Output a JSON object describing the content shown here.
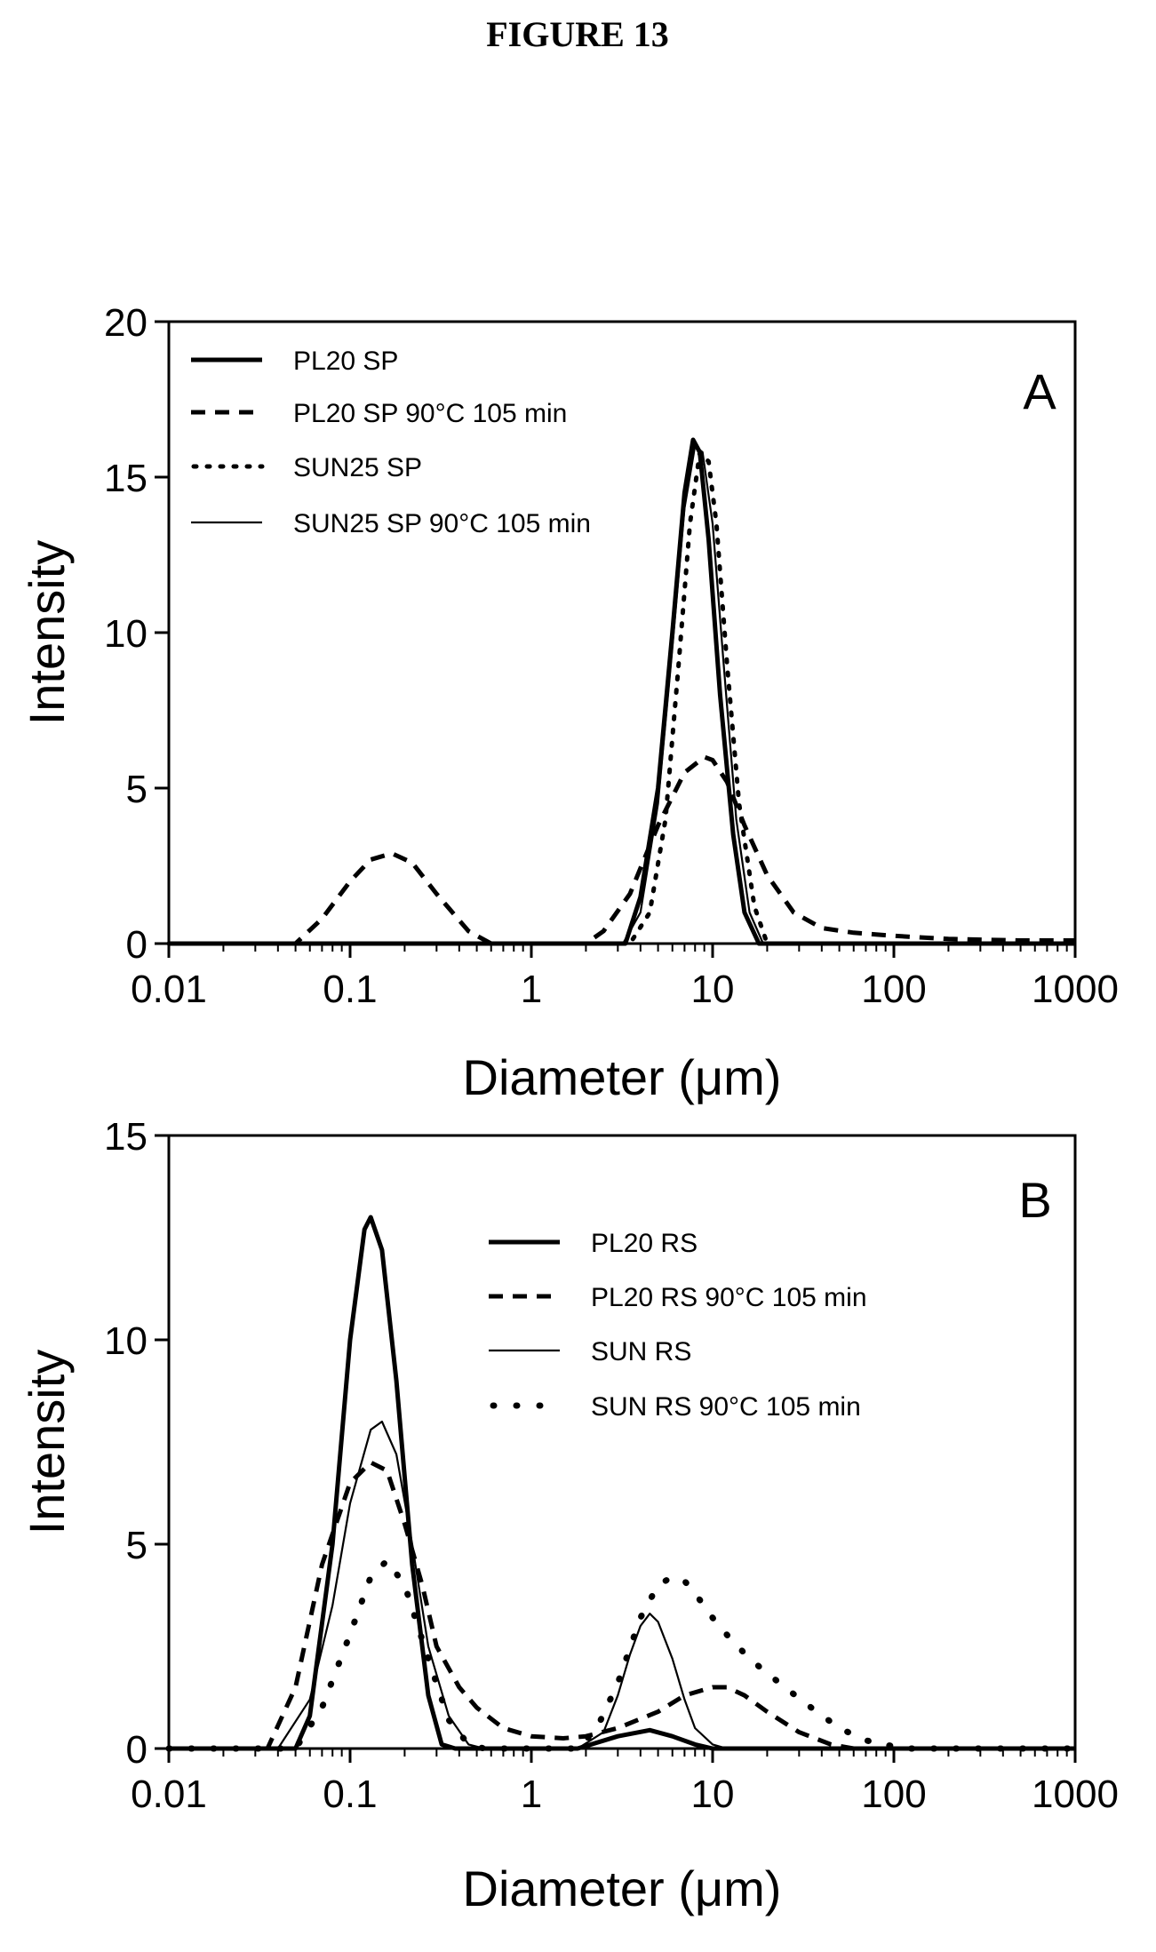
{
  "figure_title": "FIGURE 13",
  "chart_data": [
    {
      "type": "line",
      "panel": "A",
      "xlabel": "Diameter (μm)",
      "ylabel": "Intensity",
      "x_scale": "log",
      "xlim": [
        0.01,
        1000
      ],
      "ylim": [
        0,
        20
      ],
      "xticks": [
        "0.01",
        "0.1",
        "1",
        "10",
        "100",
        "1000"
      ],
      "yticks": [
        "0",
        "5",
        "10",
        "15",
        "20"
      ],
      "legend_position": "top-left",
      "series": [
        {
          "name": "PL20 SP",
          "style": "thick-solid",
          "x": [
            0.01,
            3.3,
            4,
            5,
            6,
            7,
            7.8,
            8.5,
            9.5,
            11,
            13,
            15,
            18,
            1000
          ],
          "y": [
            0,
            0,
            1.5,
            5,
            10,
            14.5,
            16.2,
            15.8,
            13,
            8,
            3.5,
            1,
            0,
            0
          ]
        },
        {
          "name": "PL20 SP 90°C 105 min",
          "style": "thick-dashed",
          "x": [
            0.01,
            0.05,
            0.07,
            0.1,
            0.13,
            0.17,
            0.22,
            0.3,
            0.45,
            0.6,
            2,
            2.5,
            3.5,
            5,
            7,
            9,
            10,
            12,
            15,
            20,
            28,
            40,
            60,
            100,
            200,
            500,
            1000
          ],
          "y": [
            0,
            0,
            0.8,
            2,
            2.7,
            2.9,
            2.6,
            1.6,
            0.4,
            0,
            0,
            0.4,
            1.6,
            3.8,
            5.5,
            6,
            5.9,
            5.2,
            3.8,
            2.2,
            1,
            0.5,
            0.35,
            0.25,
            0.15,
            0.1,
            0.1
          ]
        },
        {
          "name": "SUN25 SP",
          "style": "dotted",
          "x": [
            0.01,
            3.5,
            4.5,
            5.5,
            6.5,
            7.5,
            8.5,
            9.5,
            10.5,
            12,
            14,
            17,
            20,
            1000
          ],
          "y": [
            0,
            0,
            1,
            4,
            9,
            13.5,
            15.8,
            15.5,
            13.5,
            9,
            4.5,
            1.2,
            0,
            0
          ]
        },
        {
          "name": "SUN25 SP 90°C 105 min",
          "style": "thin-solid",
          "x": [
            0.01,
            3.2,
            4,
            5,
            6,
            7,
            8,
            8.8,
            10,
            11.5,
            13.5,
            16,
            19,
            1000
          ],
          "y": [
            0,
            0,
            1,
            4.5,
            9.5,
            14,
            16,
            15.8,
            13.5,
            9,
            4,
            1,
            0,
            0
          ]
        }
      ]
    },
    {
      "type": "line",
      "panel": "B",
      "xlabel": "Diameter (μm)",
      "ylabel": "Intensity",
      "x_scale": "log",
      "xlim": [
        0.01,
        1000
      ],
      "ylim": [
        0,
        15
      ],
      "xticks": [
        "0.01",
        "0.1",
        "1",
        "10",
        "100",
        "1000"
      ],
      "yticks": [
        "0",
        "5",
        "10",
        "15"
      ],
      "legend_position": "top-right",
      "series": [
        {
          "name": "PL20 RS",
          "style": "thick-solid",
          "x": [
            0.01,
            0.05,
            0.06,
            0.08,
            0.1,
            0.12,
            0.13,
            0.15,
            0.18,
            0.22,
            0.27,
            0.32,
            0.38,
            1.8,
            3,
            4.5,
            6,
            8,
            10,
            1000
          ],
          "y": [
            0,
            0,
            0.8,
            5,
            10,
            12.7,
            13,
            12.2,
            9,
            4.5,
            1.3,
            0.1,
            0,
            0,
            0.3,
            0.45,
            0.3,
            0.1,
            0,
            0
          ]
        },
        {
          "name": "PL20 RS 90°C 105 min",
          "style": "thick-dashed",
          "x": [
            0.01,
            0.035,
            0.05,
            0.07,
            0.1,
            0.13,
            0.16,
            0.2,
            0.25,
            0.3,
            0.4,
            0.5,
            0.7,
            1,
            1.5,
            2,
            3,
            5,
            7,
            10,
            12,
            15,
            20,
            30,
            45,
            60,
            1000
          ],
          "y": [
            0,
            0,
            1.5,
            4.5,
            6.5,
            7,
            6.8,
            5.5,
            4,
            2.5,
            1.5,
            1,
            0.5,
            0.3,
            0.25,
            0.3,
            0.5,
            0.9,
            1.3,
            1.5,
            1.5,
            1.3,
            0.9,
            0.4,
            0.1,
            0,
            0
          ]
        },
        {
          "name": "SUN RS",
          "style": "thin-solid",
          "x": [
            0.01,
            0.04,
            0.06,
            0.08,
            0.1,
            0.13,
            0.15,
            0.18,
            0.22,
            0.27,
            0.35,
            0.45,
            0.55,
            1.8,
            2.5,
            3,
            3.5,
            4,
            4.5,
            5,
            6,
            7,
            8,
            10,
            12,
            1000
          ],
          "y": [
            0,
            0,
            1.2,
            3.5,
            6,
            7.8,
            8,
            7.2,
            5,
            2.5,
            0.8,
            0.1,
            0,
            0,
            0.4,
            1.3,
            2.3,
            3,
            3.3,
            3.1,
            2.2,
            1.2,
            0.5,
            0.1,
            0,
            0
          ]
        },
        {
          "name": "SUN RS 90°C 105 min",
          "style": "dotted",
          "x": [
            0.01,
            0.05,
            0.07,
            0.1,
            0.13,
            0.16,
            0.2,
            0.27,
            0.35,
            0.45,
            0.55,
            1.8,
            2.3,
            3,
            4,
            5,
            6,
            7,
            8,
            10,
            13,
            17,
            25,
            35,
            50,
            70,
            100,
            120,
            1000
          ],
          "y": [
            0,
            0,
            1,
            2.8,
            4.2,
            4.6,
            4,
            2.2,
            0.7,
            0.1,
            0,
            0,
            0.5,
            1.6,
            3.2,
            4,
            4.2,
            4.1,
            3.8,
            3.2,
            2.6,
            2.1,
            1.5,
            1,
            0.5,
            0.2,
            0.05,
            0,
            0
          ]
        }
      ]
    }
  ]
}
